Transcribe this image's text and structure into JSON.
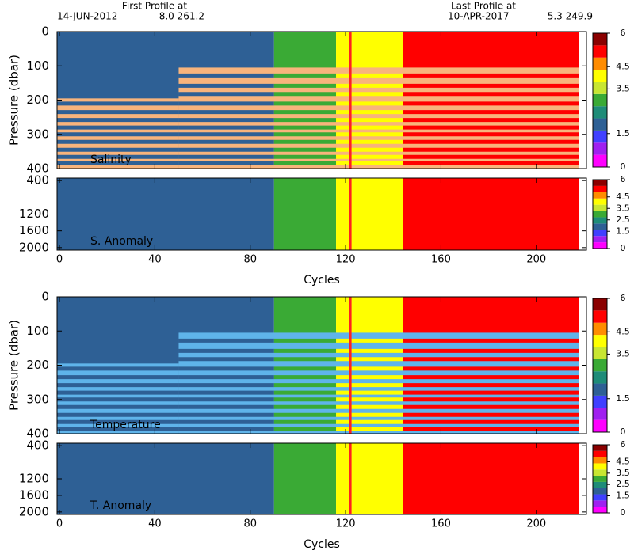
{
  "header": {
    "first_title": "First Profile at",
    "first_date": "14-JUN-2012",
    "first_pos": "8.0 261.2",
    "last_title": "Last Profile at",
    "last_date": "10-APR-2017",
    "last_pos": "5.3 249.9"
  },
  "chart_data": [
    {
      "type": "heatmap",
      "label": "Salinity",
      "ylabel": "Pressure (dbar)",
      "ylim": [
        0,
        400
      ],
      "yticks": [
        0,
        100,
        200,
        300,
        400
      ],
      "xlim": [
        -1,
        221
      ],
      "xticks": [
        0,
        40,
        80,
        120,
        160,
        200
      ],
      "segments": [
        {
          "x": [
            -1,
            90
          ],
          "color": "#2e6095"
        },
        {
          "x": [
            90,
            116
          ],
          "color": "#3aaa35"
        },
        {
          "x": [
            116,
            144
          ],
          "color": "#ffff00"
        },
        {
          "x": [
            144,
            218
          ],
          "color": "#ff0000"
        }
      ],
      "overlay": {
        "color": "#f8b47c",
        "regions": [
          {
            "x": [
              50,
              218
            ],
            "y": [
              105,
              400
            ]
          },
          {
            "x": [
              -1,
              50
            ],
            "y": [
              195,
              400
            ]
          }
        ]
      },
      "levels": [
        128,
        158,
        182,
        210,
        235,
        258,
        280,
        300,
        322,
        345,
        366,
        385
      ],
      "marker": 122,
      "colorbar": {
        "clim": [
          0,
          6
        ],
        "colors": [
          "#ff00ff",
          "#a020f0",
          "#4040ff",
          "#2e6095",
          "#1e8c78",
          "#3aaa35",
          "#c8e632",
          "#ffff00",
          "#ff8c00",
          "#ff0000",
          "#8b0000"
        ],
        "ticks": [
          0,
          1.5,
          3.5,
          4.5,
          6
        ]
      }
    },
    {
      "type": "heatmap",
      "label": "S. Anomaly",
      "ylim": [
        340,
        2060
      ],
      "yticks": [
        400,
        1200,
        1600,
        2000
      ],
      "xlim": [
        -1,
        221
      ],
      "xticks": [
        0,
        40,
        80,
        120,
        160,
        200
      ],
      "xlabel": "Cycles",
      "segments": [
        {
          "x": [
            -1,
            90
          ],
          "color": "#2e6095"
        },
        {
          "x": [
            90,
            116
          ],
          "color": "#3aaa35"
        },
        {
          "x": [
            116,
            144
          ],
          "color": "#ffff00"
        },
        {
          "x": [
            144,
            218
          ],
          "color": "#ff0000"
        }
      ],
      "marker": 122,
      "colorbar": {
        "clim": [
          0,
          6
        ],
        "colors": [
          "#ff00ff",
          "#a020f0",
          "#4040ff",
          "#2e6095",
          "#1e8c78",
          "#3aaa35",
          "#c8e632",
          "#ffff00",
          "#ff8c00",
          "#ff0000",
          "#8b0000"
        ],
        "ticks": [
          0,
          1.5,
          2.5,
          3.5,
          4.5,
          6
        ]
      }
    },
    {
      "type": "heatmap",
      "label": "Temperature",
      "ylabel": "Pressure (dbar)",
      "ylim": [
        0,
        400
      ],
      "yticks": [
        0,
        100,
        200,
        300,
        400
      ],
      "xlim": [
        -1,
        221
      ],
      "xticks": [
        0,
        40,
        80,
        120,
        160,
        200
      ],
      "segments": [
        {
          "x": [
            -1,
            90
          ],
          "color": "#2e6095"
        },
        {
          "x": [
            90,
            116
          ],
          "color": "#3aaa35"
        },
        {
          "x": [
            116,
            144
          ],
          "color": "#ffff00"
        },
        {
          "x": [
            144,
            218
          ],
          "color": "#ff0000"
        }
      ],
      "overlay": {
        "color": "#5fb4ea",
        "regions": [
          {
            "x": [
              50,
              218
            ],
            "y": [
              105,
              400
            ]
          },
          {
            "x": [
              -1,
              50
            ],
            "y": [
              195,
              400
            ]
          }
        ]
      },
      "levels": [
        128,
        158,
        182,
        210,
        235,
        258,
        280,
        300,
        322,
        345,
        366,
        385
      ],
      "marker": 122,
      "colorbar": {
        "clim": [
          0,
          6
        ],
        "colors": [
          "#ff00ff",
          "#a020f0",
          "#4040ff",
          "#2e6095",
          "#1e8c78",
          "#3aaa35",
          "#c8e632",
          "#ffff00",
          "#ff8c00",
          "#ff0000",
          "#8b0000"
        ],
        "ticks": [
          0,
          1.5,
          3.5,
          4.5,
          6
        ]
      }
    },
    {
      "type": "heatmap",
      "label": "T. Anomaly",
      "ylim": [
        340,
        2060
      ],
      "yticks": [
        400,
        1200,
        1600,
        2000
      ],
      "xlim": [
        -1,
        221
      ],
      "xticks": [
        0,
        40,
        80,
        120,
        160,
        200
      ],
      "xlabel": "Cycles",
      "segments": [
        {
          "x": [
            -1,
            90
          ],
          "color": "#2e6095"
        },
        {
          "x": [
            90,
            116
          ],
          "color": "#3aaa35"
        },
        {
          "x": [
            116,
            144
          ],
          "color": "#ffff00"
        },
        {
          "x": [
            144,
            218
          ],
          "color": "#ff0000"
        }
      ],
      "marker": 122,
      "colorbar": {
        "clim": [
          0,
          6
        ],
        "colors": [
          "#ff00ff",
          "#a020f0",
          "#4040ff",
          "#2e6095",
          "#1e8c78",
          "#3aaa35",
          "#c8e632",
          "#ffff00",
          "#ff8c00",
          "#ff0000",
          "#8b0000"
        ],
        "ticks": [
          0,
          1.5,
          2.5,
          3.5,
          4.5,
          6
        ]
      }
    }
  ]
}
